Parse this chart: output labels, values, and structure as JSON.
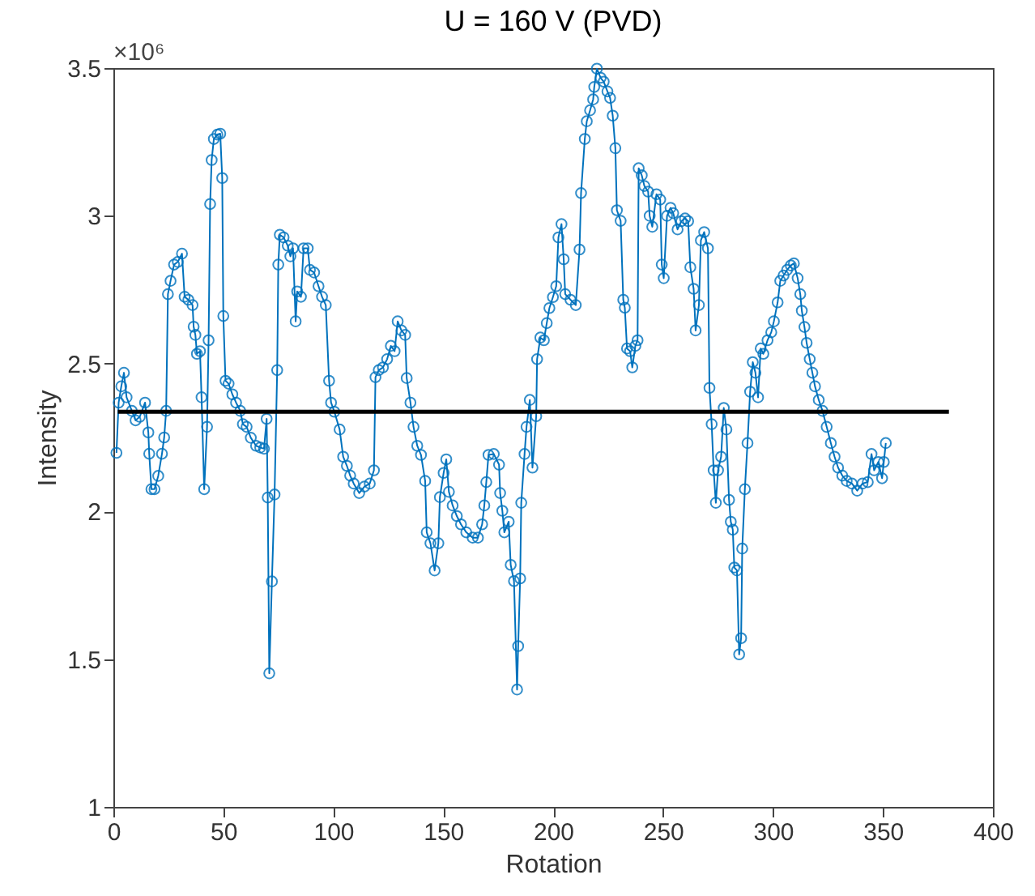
{
  "chart_data": {
    "type": "line",
    "title": "U = 160 V (PVD)",
    "xlabel": "Rotation",
    "ylabel": "Intensity",
    "annotations": [
      "×10⁶"
    ],
    "xlim": [
      0,
      400
    ],
    "xticks": [
      0,
      50,
      100,
      150,
      200,
      250,
      300,
      350,
      400
    ],
    "ylim": [
      1,
      3.5
    ],
    "yticks": [
      1,
      1.5,
      2,
      2.5,
      3,
      3.5
    ],
    "grid": false,
    "line_style": "solid",
    "series": [
      {
        "color": "#0072bd",
        "marker": "circle",
        "x": [
          1.4,
          2.4,
          3.6,
          4.8,
          6,
          8.4,
          10.1,
          12,
          14.4,
          15.9,
          16.3,
          17.3,
          18.7,
          20.4,
          22.1,
          23.1,
          24,
          24.8,
          26,
          27.6,
          29.3,
          31.2,
          32.4,
          34.1,
          36,
          36.5,
          37.3,
          38,
          39.4,
          40.1,
          41.3,
          42.6,
          43.3,
          44,
          44.7,
          45.7,
          47.3,
          48.6,
          49.5,
          50,
          51,
          52.4,
          54.1,
          55.8,
          57.7,
          58.9,
          60.6,
          62.5,
          64.9,
          66.8,
          68.5,
          69.7,
          70.2,
          70.9,
          72.1,
          73.3,
          74.5,
          75,
          75.7,
          77.4,
          79.3,
          80.5,
          81.7,
          82.9,
          83.6,
          85.3,
          86.5,
          88.4,
          89.4,
          91.3,
          93.3,
          94.9,
          96.6,
          98.1,
          99,
          100.5,
          102.9,
          104.5,
          106.2,
          107.7,
          109.3,
          111.8,
          114.2,
          116.6,
          118.5,
          119.2,
          120.7,
          122.6,
          124.5,
          126.2,
          127.9,
          129.3,
          131,
          132.7,
          133.4,
          135.1,
          136.5,
          138.2,
          139.9,
          141.8,
          142.5,
          144.2,
          146.1,
          147.8,
          148.5,
          150.2,
          151.4,
          152.6,
          154.3,
          156.2,
          158.1,
          160.5,
          163.4,
          165.8,
          167.7,
          168.7,
          169.6,
          170.6,
          173,
          175.4,
          175.9,
          176.9,
          177.8,
          179.8,
          180.7,
          182.2,
          183.6,
          184.1,
          185,
          185.5,
          187,
          187.9,
          189.4,
          190.6,
          192.3,
          192.7,
          194.2,
          195.8,
          197.1,
          198.3,
          199.9,
          201.4,
          202.4,
          203.8,
          204.8,
          205.5,
          207.9,
          210.3,
          212,
          212.7,
          214.4,
          215.3,
          216.8,
          218.2,
          218.7,
          219.9,
          221.6,
          223,
          224.7,
          225.9,
          227.1,
          228.3,
          229,
          230.7,
          231.9,
          232.6,
          233.6,
          235,
          236,
          237.4,
          238.4,
          238.9,
          240.3,
          241.5,
          243.2,
          243.9,
          245.1,
          247,
          248.7,
          249.4,
          250.3,
          251.8,
          253.4,
          254.6,
          256.6,
          258.3,
          260,
          261.4,
          262.4,
          263.9,
          264.8,
          266.3,
          267.2,
          268.7,
          270.4,
          271.1,
          272.1,
          273,
          274,
          275,
          276.4,
          277.6,
          278.8,
          280,
          280.8,
          281.7,
          282.4,
          283.6,
          284.6,
          285.5,
          286,
          287.2,
          288.4,
          289.6,
          290.8,
          292,
          293.2,
          294.4,
          295.6,
          297.5,
          299.2,
          300.4,
          302.1,
          303.3,
          304.8,
          306.4,
          308.1,
          309.5,
          311.2,
          312.4,
          313.1,
          314.3,
          315.3,
          316.7,
          317.9,
          319.1,
          320.8,
          322.5,
          324.4,
          326.3,
          328,
          329.6,
          331.5,
          333.5,
          335.9,
          338.3,
          340.7,
          343.1,
          344.8,
          346,
          347.9,
          349.6,
          350.4,
          351.3
        ],
        "values": [
          2.198,
          2.368,
          2.423,
          2.469,
          2.386,
          2.34,
          2.308,
          2.32,
          2.368,
          2.267,
          2.195,
          2.075,
          2.075,
          2.12,
          2.195,
          2.25,
          2.34,
          2.735,
          2.78,
          2.835,
          2.844,
          2.872,
          2.726,
          2.716,
          2.698,
          2.625,
          2.597,
          2.533,
          2.542,
          2.386,
          2.075,
          2.286,
          2.579,
          3.04,
          3.189,
          3.26,
          3.275,
          3.278,
          3.128,
          2.661,
          2.442,
          2.432,
          2.396,
          2.368,
          2.34,
          2.295,
          2.286,
          2.249,
          2.222,
          2.216,
          2.212,
          2.313,
          2.047,
          1.452,
          1.763,
          2.057,
          2.478,
          2.835,
          2.936,
          2.927,
          2.899,
          2.863,
          2.89,
          2.643,
          2.744,
          2.726,
          2.89,
          2.89,
          2.817,
          2.808,
          2.762,
          2.726,
          2.698,
          2.442,
          2.368,
          2.337,
          2.277,
          2.185,
          2.154,
          2.121,
          2.094,
          2.062,
          2.084,
          2.094,
          2.139,
          2.454,
          2.478,
          2.487,
          2.515,
          2.56,
          2.542,
          2.643,
          2.612,
          2.597,
          2.451,
          2.368,
          2.286,
          2.222,
          2.191,
          2.103,
          1.929,
          1.892,
          1.8,
          1.892,
          2.048,
          2.13,
          2.176,
          2.066,
          2.02,
          1.984,
          1.956,
          1.929,
          1.911,
          1.911,
          1.956,
          2.02,
          2.099,
          2.191,
          2.194,
          2.158,
          2.062,
          2.002,
          1.929,
          1.965,
          1.819,
          1.764,
          1.397,
          1.544,
          1.773,
          2.029,
          2.194,
          2.286,
          2.377,
          2.148,
          2.322,
          2.515,
          2.588,
          2.579,
          2.637,
          2.688,
          2.725,
          2.762,
          2.927,
          2.972,
          2.853,
          2.735,
          2.716,
          2.698,
          2.886,
          3.077,
          3.26,
          3.32,
          3.357,
          3.394,
          3.436,
          3.498,
          3.467,
          3.454,
          3.421,
          3.399,
          3.339,
          3.229,
          3.019,
          2.983,
          2.716,
          2.689,
          2.551,
          2.542,
          2.487,
          2.56,
          2.579,
          3.161,
          3.137,
          3.101,
          3.082,
          3.0,
          2.963,
          3.073,
          3.055,
          2.835,
          2.789,
          3.0,
          3.027,
          3.009,
          2.954,
          2.982,
          2.991,
          2.982,
          2.826,
          2.753,
          2.612,
          2.698,
          2.917,
          2.945,
          2.89,
          2.418,
          2.295,
          2.139,
          2.029,
          2.139,
          2.185,
          2.35,
          2.277,
          2.039,
          1.965,
          1.938,
          1.81,
          1.8,
          1.516,
          1.571,
          1.874,
          2.075,
          2.231,
          2.405,
          2.505,
          2.469,
          2.386,
          2.551,
          2.533,
          2.579,
          2.606,
          2.643,
          2.707,
          2.78,
          2.798,
          2.817,
          2.832,
          2.839,
          2.789,
          2.735,
          2.679,
          2.624,
          2.57,
          2.515,
          2.469,
          2.423,
          2.377,
          2.34,
          2.286,
          2.231,
          2.185,
          2.148,
          2.121,
          2.103,
          2.094,
          2.07,
          2.094,
          2.099,
          2.194,
          2.139,
          2.167,
          2.112,
          2.167,
          2.231
        ]
      },
      {
        "type": "line",
        "color": "#000000",
        "marker": "none",
        "x": [
          2,
          380
        ],
        "values": [
          2.337,
          2.337
        ]
      }
    ]
  }
}
